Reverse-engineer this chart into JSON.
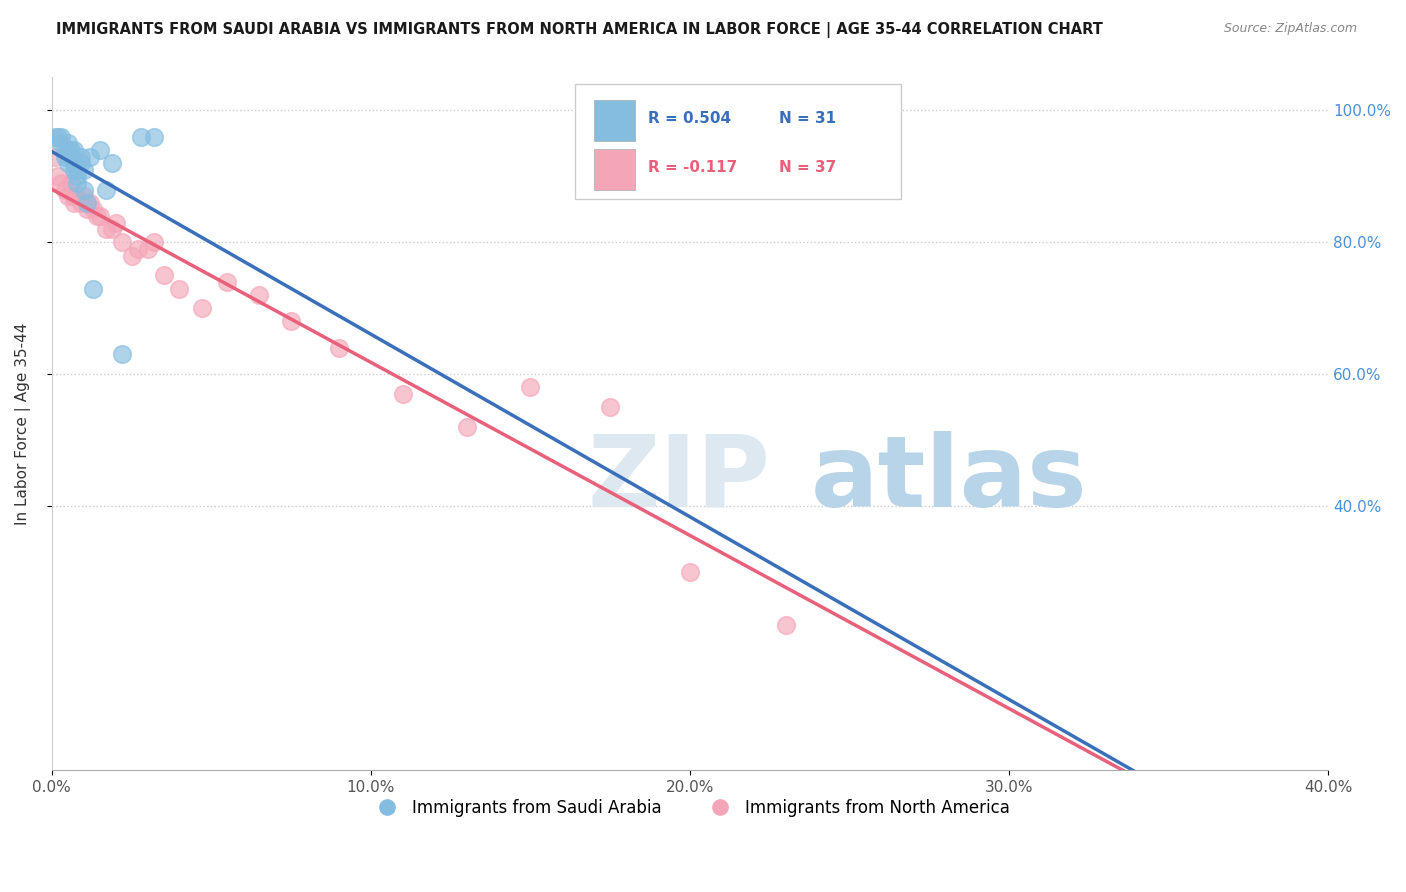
{
  "title": "IMMIGRANTS FROM SAUDI ARABIA VS IMMIGRANTS FROM NORTH AMERICA IN LABOR FORCE | AGE 35-44 CORRELATION CHART",
  "source": "Source: ZipAtlas.com",
  "ylabel": "In Labor Force | Age 35-44",
  "xlim": [
    0.0,
    0.4
  ],
  "ylim": [
    0.0,
    1.05
  ],
  "xticks": [
    0.0,
    0.1,
    0.2,
    0.3,
    0.4
  ],
  "yticks": [
    0.4,
    0.6,
    0.8,
    1.0
  ],
  "ytick_labels": [
    "40.0%",
    "60.0%",
    "80.0%",
    "100.0%"
  ],
  "xtick_labels": [
    "0.0%",
    "10.0%",
    "20.0%",
    "30.0%",
    "40.0%"
  ],
  "legend_blue_label": "Immigrants from Saudi Arabia",
  "legend_pink_label": "Immigrants from North America",
  "r_blue": "R = 0.504",
  "n_blue": "N = 31",
  "r_pink": "R = -0.117",
  "n_pink": "N = 37",
  "blue_color": "#85bde0",
  "pink_color": "#f4a6b8",
  "blue_line_color": "#3a6fba",
  "pink_line_color": "#e8607a",
  "blue_x": [
    0.001,
    0.002,
    0.003,
    0.003,
    0.004,
    0.004,
    0.005,
    0.005,
    0.005,
    0.006,
    0.006,
    0.006,
    0.007,
    0.007,
    0.007,
    0.008,
    0.008,
    0.008,
    0.009,
    0.009,
    0.01,
    0.01,
    0.011,
    0.012,
    0.013,
    0.015,
    0.017,
    0.019,
    0.022,
    0.028,
    0.032
  ],
  "blue_y": [
    0.96,
    0.96,
    0.95,
    0.96,
    0.93,
    0.94,
    0.95,
    0.92,
    0.94,
    0.93,
    0.94,
    0.93,
    0.94,
    0.92,
    0.91,
    0.91,
    0.9,
    0.89,
    0.93,
    0.92,
    0.91,
    0.88,
    0.86,
    0.93,
    0.73,
    0.94,
    0.88,
    0.92,
    0.63,
    0.96,
    0.96
  ],
  "pink_x": [
    0.001,
    0.002,
    0.003,
    0.004,
    0.005,
    0.006,
    0.007,
    0.007,
    0.008,
    0.009,
    0.01,
    0.011,
    0.012,
    0.013,
    0.014,
    0.015,
    0.017,
    0.019,
    0.02,
    0.022,
    0.025,
    0.027,
    0.03,
    0.032,
    0.035,
    0.04,
    0.047,
    0.055,
    0.065,
    0.075,
    0.09,
    0.11,
    0.13,
    0.15,
    0.175,
    0.2,
    0.23
  ],
  "pink_y": [
    0.93,
    0.9,
    0.89,
    0.88,
    0.87,
    0.89,
    0.87,
    0.86,
    0.87,
    0.86,
    0.87,
    0.85,
    0.86,
    0.85,
    0.84,
    0.84,
    0.82,
    0.82,
    0.83,
    0.8,
    0.78,
    0.79,
    0.79,
    0.8,
    0.75,
    0.73,
    0.7,
    0.74,
    0.72,
    0.68,
    0.64,
    0.57,
    0.52,
    0.58,
    0.55,
    0.3,
    0.22
  ]
}
